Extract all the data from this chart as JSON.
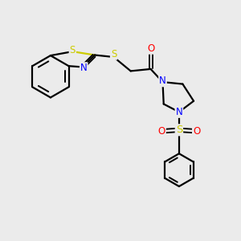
{
  "bg_color": "#ebebeb",
  "bond_color": "#000000",
  "S_color": "#cccc00",
  "N_color": "#0000ff",
  "O_color": "#ff0000",
  "line_width": 1.6,
  "font_size_atom": 8.5,
  "fig_width": 3.0,
  "fig_height": 3.0,
  "dpi": 100,
  "xlim": [
    0,
    12
  ],
  "ylim": [
    0,
    12
  ]
}
